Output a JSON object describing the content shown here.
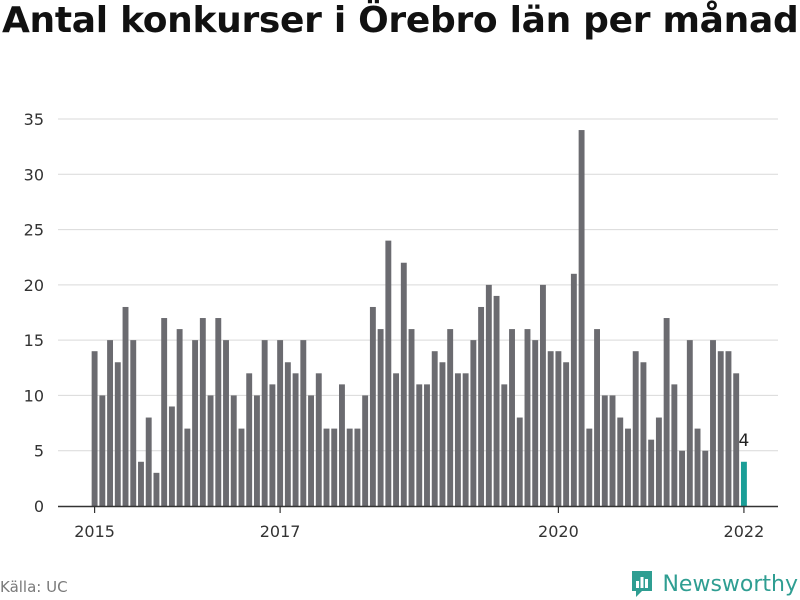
{
  "title": "Antal konkurser i Örebro län per månad",
  "source": "Källa: UC",
  "brand": {
    "name": "Newsworthy",
    "icon": "newsworthy-logo-icon"
  },
  "colors": {
    "bar": "#6b6b70",
    "highlight": "#1a9e97",
    "grid": "#d9d9d9",
    "axis": "#333333",
    "brand": "#2f9e92"
  },
  "chart_data": {
    "type": "bar",
    "title": "Antal konkurser i Örebro län per månad",
    "xlabel": "",
    "ylabel": "",
    "ylim": [
      0,
      35
    ],
    "yticks": [
      0,
      5,
      10,
      15,
      20,
      25,
      30,
      35
    ],
    "x_tick_labels": [
      {
        "label": "2015",
        "index": 0
      },
      {
        "label": "2017",
        "index": 24
      },
      {
        "label": "2020",
        "index": 60
      },
      {
        "label": "2022",
        "index": 84
      }
    ],
    "start": "2015-01",
    "end": "2022-01",
    "values": [
      14,
      10,
      15,
      13,
      18,
      15,
      4,
      8,
      3,
      17,
      9,
      16,
      7,
      15,
      17,
      10,
      17,
      15,
      10,
      7,
      12,
      10,
      15,
      11,
      15,
      13,
      12,
      15,
      10,
      12,
      7,
      7,
      11,
      7,
      7,
      10,
      18,
      16,
      24,
      12,
      22,
      16,
      11,
      11,
      14,
      13,
      16,
      12,
      12,
      15,
      18,
      20,
      19,
      11,
      16,
      8,
      16,
      15,
      20,
      14,
      14,
      13,
      21,
      34,
      7,
      16,
      10,
      10,
      8,
      7,
      14,
      13,
      6,
      8,
      17,
      11,
      5,
      15,
      7,
      5,
      15,
      14,
      14,
      12,
      4
    ],
    "highlight_index": 84,
    "highlight_label": "4"
  }
}
